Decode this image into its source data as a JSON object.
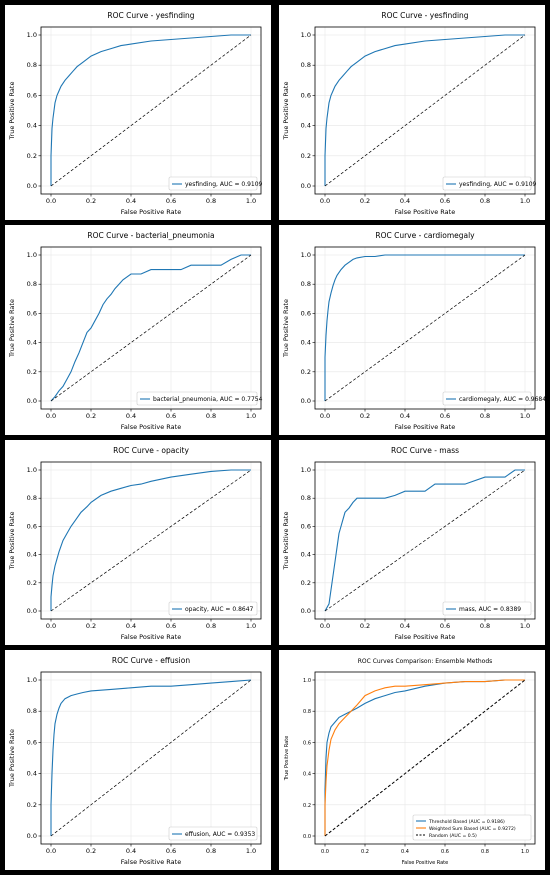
{
  "colors": {
    "curve": "#1f77b4",
    "curve2": "#ff7f0e",
    "random": "#000000",
    "grid": "#e6e6e6",
    "axis": "#000000",
    "background": "#ffffff",
    "frame": "#000000"
  },
  "chart_data": [
    {
      "type": "line",
      "title": "ROC Curve - yesfinding",
      "xlabel": "False Positive Rate",
      "ylabel": "True Positive Rate",
      "xlim": [
        0,
        1
      ],
      "ylim": [
        0,
        1
      ],
      "xticks": [
        "0.0",
        "0.2",
        "0.4",
        "0.6",
        "0.8",
        "1.0"
      ],
      "yticks": [
        "0.0",
        "0.2",
        "0.4",
        "0.6",
        "0.8",
        "1.0"
      ],
      "grid": true,
      "legend_position": "bottom-right",
      "series": [
        {
          "name": "yesfinding, AUC = 0.9109",
          "color": "#1f77b4",
          "x": [
            0,
            0.0,
            0.005,
            0.01,
            0.015,
            0.02,
            0.03,
            0.04,
            0.05,
            0.07,
            0.09,
            0.11,
            0.13,
            0.16,
            0.2,
            0.25,
            0.3,
            0.35,
            0.4,
            0.5,
            0.6,
            0.7,
            0.8,
            0.9,
            1.0
          ],
          "y": [
            0,
            0.2,
            0.38,
            0.45,
            0.5,
            0.55,
            0.6,
            0.63,
            0.66,
            0.7,
            0.73,
            0.76,
            0.79,
            0.82,
            0.86,
            0.89,
            0.91,
            0.93,
            0.94,
            0.96,
            0.97,
            0.98,
            0.99,
            1.0,
            1.0
          ]
        },
        {
          "name": "",
          "color": "#000000",
          "dashed": true,
          "x": [
            0,
            1
          ],
          "y": [
            0,
            1
          ]
        }
      ]
    },
    {
      "type": "line",
      "title": "ROC Curve - yesfinding",
      "xlabel": "False Positive Rate",
      "ylabel": "True Positive Rate",
      "xlim": [
        0,
        1
      ],
      "ylim": [
        0,
        1
      ],
      "xticks": [
        "0.0",
        "0.2",
        "0.4",
        "0.6",
        "0.8",
        "1.0"
      ],
      "yticks": [
        "0.0",
        "0.2",
        "0.4",
        "0.6",
        "0.8",
        "1.0"
      ],
      "grid": true,
      "legend_position": "bottom-right",
      "series": [
        {
          "name": "yesfinding, AUC = 0.9109",
          "color": "#1f77b4",
          "x": [
            0,
            0.0,
            0.005,
            0.01,
            0.015,
            0.02,
            0.03,
            0.04,
            0.05,
            0.07,
            0.09,
            0.11,
            0.13,
            0.16,
            0.2,
            0.25,
            0.3,
            0.35,
            0.4,
            0.5,
            0.6,
            0.7,
            0.8,
            0.9,
            1.0
          ],
          "y": [
            0,
            0.2,
            0.38,
            0.45,
            0.5,
            0.55,
            0.6,
            0.63,
            0.66,
            0.7,
            0.73,
            0.76,
            0.79,
            0.82,
            0.86,
            0.89,
            0.91,
            0.93,
            0.94,
            0.96,
            0.97,
            0.98,
            0.99,
            1.0,
            1.0
          ]
        },
        {
          "name": "",
          "color": "#000000",
          "dashed": true,
          "x": [
            0,
            1
          ],
          "y": [
            0,
            1
          ]
        }
      ]
    },
    {
      "type": "line",
      "title": "ROC Curve - bacterial_pneumonia",
      "xlabel": "False Positive Rate",
      "ylabel": "True Positive Rate",
      "xlim": [
        0,
        1
      ],
      "ylim": [
        0,
        1
      ],
      "xticks": [
        "0.0",
        "0.2",
        "0.4",
        "0.6",
        "0.8",
        "1.0"
      ],
      "yticks": [
        "0.0",
        "0.2",
        "0.4",
        "0.6",
        "0.8",
        "1.0"
      ],
      "grid": true,
      "legend_position": "bottom-right",
      "series": [
        {
          "name": "bacterial_pneumonia, AUC = 0.7754",
          "color": "#1f77b4",
          "x": [
            0,
            0.02,
            0.04,
            0.06,
            0.08,
            0.1,
            0.12,
            0.14,
            0.16,
            0.18,
            0.2,
            0.22,
            0.24,
            0.26,
            0.28,
            0.3,
            0.32,
            0.34,
            0.36,
            0.38,
            0.4,
            0.45,
            0.5,
            0.55,
            0.6,
            0.65,
            0.7,
            0.75,
            0.8,
            0.85,
            0.9,
            0.95,
            1.0
          ],
          "y": [
            0,
            0.03,
            0.07,
            0.1,
            0.15,
            0.2,
            0.27,
            0.33,
            0.4,
            0.47,
            0.5,
            0.55,
            0.6,
            0.66,
            0.7,
            0.73,
            0.77,
            0.8,
            0.83,
            0.85,
            0.87,
            0.87,
            0.9,
            0.9,
            0.9,
            0.9,
            0.93,
            0.93,
            0.93,
            0.93,
            0.97,
            1.0,
            1.0
          ]
        },
        {
          "name": "",
          "color": "#000000",
          "dashed": true,
          "x": [
            0,
            1
          ],
          "y": [
            0,
            1
          ]
        }
      ]
    },
    {
      "type": "line",
      "title": "ROC Curve - cardiomegaly",
      "xlabel": "False Positive Rate",
      "ylabel": "True Positive Rate",
      "xlim": [
        0,
        1
      ],
      "ylim": [
        0,
        1
      ],
      "xticks": [
        "0.0",
        "0.2",
        "0.4",
        "0.6",
        "0.8",
        "1.0"
      ],
      "yticks": [
        "0.0",
        "0.2",
        "0.4",
        "0.6",
        "0.8",
        "1.0"
      ],
      "grid": true,
      "legend_position": "bottom-right",
      "series": [
        {
          "name": "cardiomegaly, AUC = 0.9684",
          "color": "#1f77b4",
          "x": [
            0,
            0.0,
            0.005,
            0.01,
            0.015,
            0.02,
            0.03,
            0.04,
            0.05,
            0.06,
            0.08,
            0.1,
            0.12,
            0.14,
            0.16,
            0.2,
            0.25,
            0.3,
            0.4,
            0.5,
            0.6,
            0.8,
            1.0
          ],
          "y": [
            0,
            0.3,
            0.45,
            0.55,
            0.62,
            0.68,
            0.74,
            0.79,
            0.83,
            0.86,
            0.9,
            0.93,
            0.95,
            0.97,
            0.98,
            0.99,
            0.99,
            1.0,
            1.0,
            1.0,
            1.0,
            1.0,
            1.0
          ]
        },
        {
          "name": "",
          "color": "#000000",
          "dashed": true,
          "x": [
            0,
            1
          ],
          "y": [
            0,
            1
          ]
        }
      ]
    },
    {
      "type": "line",
      "title": "ROC Curve - opacity",
      "xlabel": "False Positive Rate",
      "ylabel": "True Positive Rate",
      "xlim": [
        0,
        1
      ],
      "ylim": [
        0,
        1
      ],
      "xticks": [
        "0.0",
        "0.2",
        "0.4",
        "0.6",
        "0.8",
        "1.0"
      ],
      "yticks": [
        "0.0",
        "0.2",
        "0.4",
        "0.6",
        "0.8",
        "1.0"
      ],
      "grid": true,
      "legend_position": "bottom-right",
      "series": [
        {
          "name": "opacity, AUC = 0.8647",
          "color": "#1f77b4",
          "x": [
            0,
            0.0,
            0.005,
            0.01,
            0.02,
            0.03,
            0.04,
            0.06,
            0.08,
            0.1,
            0.12,
            0.15,
            0.18,
            0.2,
            0.25,
            0.3,
            0.35,
            0.4,
            0.45,
            0.5,
            0.6,
            0.7,
            0.8,
            0.9,
            1.0
          ],
          "y": [
            0,
            0.1,
            0.18,
            0.25,
            0.32,
            0.37,
            0.42,
            0.5,
            0.55,
            0.6,
            0.64,
            0.7,
            0.74,
            0.77,
            0.82,
            0.85,
            0.87,
            0.89,
            0.9,
            0.92,
            0.95,
            0.97,
            0.99,
            1.0,
            1.0
          ]
        },
        {
          "name": "",
          "color": "#000000",
          "dashed": true,
          "x": [
            0,
            1
          ],
          "y": [
            0,
            1
          ]
        }
      ]
    },
    {
      "type": "line",
      "title": "ROC Curve - mass",
      "xlabel": "False Positive Rate",
      "ylabel": "True Positive Rate",
      "xlim": [
        0,
        1
      ],
      "ylim": [
        0,
        1
      ],
      "xticks": [
        "0.0",
        "0.2",
        "0.4",
        "0.6",
        "0.8",
        "1.0"
      ],
      "yticks": [
        "0.0",
        "0.2",
        "0.4",
        "0.6",
        "0.8",
        "1.0"
      ],
      "grid": true,
      "legend_position": "bottom-right",
      "series": [
        {
          "name": "mass, AUC = 0.8389",
          "color": "#1f77b4",
          "x": [
            0,
            0.02,
            0.03,
            0.04,
            0.05,
            0.06,
            0.07,
            0.08,
            0.09,
            0.1,
            0.12,
            0.14,
            0.16,
            0.2,
            0.3,
            0.35,
            0.4,
            0.5,
            0.55,
            0.6,
            0.7,
            0.8,
            0.9,
            0.95,
            1.0
          ],
          "y": [
            0,
            0.05,
            0.15,
            0.25,
            0.35,
            0.45,
            0.55,
            0.6,
            0.65,
            0.7,
            0.73,
            0.77,
            0.8,
            0.8,
            0.8,
            0.82,
            0.85,
            0.85,
            0.9,
            0.9,
            0.9,
            0.95,
            0.95,
            1.0,
            1.0
          ]
        },
        {
          "name": "",
          "color": "#000000",
          "dashed": true,
          "x": [
            0,
            1
          ],
          "y": [
            0,
            1
          ]
        }
      ]
    },
    {
      "type": "line",
      "title": "ROC Curve - effusion",
      "xlabel": "False Positive Rate",
      "ylabel": "True Positive Rate",
      "xlim": [
        0,
        1
      ],
      "ylim": [
        0,
        1
      ],
      "xticks": [
        "0.0",
        "0.2",
        "0.4",
        "0.6",
        "0.8",
        "1.0"
      ],
      "yticks": [
        "0.0",
        "0.2",
        "0.4",
        "0.6",
        "0.8",
        "1.0"
      ],
      "grid": true,
      "legend_position": "bottom-right",
      "series": [
        {
          "name": "effusion, AUC = 0.9353",
          "color": "#1f77b4",
          "x": [
            0,
            0.0,
            0.005,
            0.01,
            0.015,
            0.02,
            0.03,
            0.04,
            0.05,
            0.07,
            0.1,
            0.13,
            0.16,
            0.2,
            0.3,
            0.4,
            0.5,
            0.6,
            0.7,
            0.8,
            0.9,
            1.0
          ],
          "y": [
            0,
            0.2,
            0.4,
            0.55,
            0.65,
            0.72,
            0.78,
            0.82,
            0.85,
            0.88,
            0.9,
            0.91,
            0.92,
            0.93,
            0.94,
            0.95,
            0.96,
            0.96,
            0.97,
            0.98,
            0.99,
            1.0
          ]
        },
        {
          "name": "",
          "color": "#000000",
          "dashed": true,
          "x": [
            0,
            1
          ],
          "y": [
            0,
            1
          ]
        }
      ]
    },
    {
      "type": "line",
      "title": "ROC Curves Comparison: Ensemble Methods",
      "xlabel": "False Positive Rate",
      "ylabel": "True Positive Rate",
      "xlim": [
        0,
        1
      ],
      "ylim": [
        0,
        1
      ],
      "xticks": [
        "0.0",
        "0.2",
        "0.4",
        "0.6",
        "0.8",
        "1.0"
      ],
      "yticks": [
        "0.0",
        "0.2",
        "0.4",
        "0.6",
        "0.8",
        "1.0"
      ],
      "grid": true,
      "legend_position": "bottom-right",
      "series": [
        {
          "name": "Threshold Based (AUC = 0.9186)",
          "color": "#1f77b4",
          "x": [
            0,
            0.0,
            0.005,
            0.01,
            0.02,
            0.03,
            0.05,
            0.07,
            0.1,
            0.13,
            0.16,
            0.2,
            0.25,
            0.3,
            0.35,
            0.4,
            0.5,
            0.6,
            0.7,
            0.8,
            0.9,
            1.0
          ],
          "y": [
            0,
            0.3,
            0.5,
            0.6,
            0.66,
            0.7,
            0.73,
            0.76,
            0.78,
            0.8,
            0.82,
            0.85,
            0.88,
            0.9,
            0.92,
            0.93,
            0.96,
            0.98,
            0.99,
            0.99,
            1.0,
            1.0
          ]
        },
        {
          "name": "Weighted Sum Based (AUC = 0.9272)",
          "color": "#ff7f0e",
          "x": [
            0,
            0.0,
            0.005,
            0.01,
            0.02,
            0.03,
            0.05,
            0.07,
            0.1,
            0.13,
            0.16,
            0.2,
            0.25,
            0.3,
            0.35,
            0.4,
            0.5,
            0.6,
            0.7,
            0.8,
            0.9,
            1.0
          ],
          "y": [
            0,
            0.2,
            0.35,
            0.45,
            0.55,
            0.62,
            0.68,
            0.72,
            0.76,
            0.8,
            0.84,
            0.9,
            0.93,
            0.95,
            0.96,
            0.96,
            0.97,
            0.98,
            0.99,
            0.99,
            1.0,
            1.0
          ]
        },
        {
          "name": "Random (AUC = 0.5)",
          "color": "#000000",
          "dashed": true,
          "x": [
            0,
            1
          ],
          "y": [
            0,
            1
          ]
        }
      ]
    }
  ]
}
